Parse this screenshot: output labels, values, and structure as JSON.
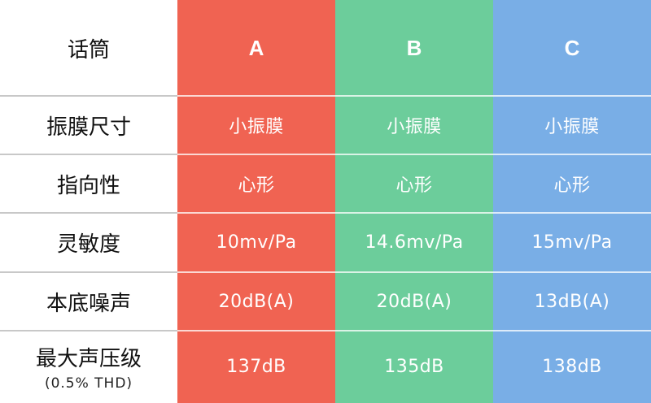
{
  "table": {
    "corner": "话筒",
    "columns": [
      {
        "name": "A",
        "color": "#f06352"
      },
      {
        "name": "B",
        "color": "#6ccd9b"
      },
      {
        "name": "C",
        "color": "#79aee6"
      }
    ],
    "rows": [
      {
        "label": "振膜尺寸",
        "values": [
          "小振膜",
          "小振膜",
          "小振膜"
        ]
      },
      {
        "label": "指向性",
        "values": [
          "心形",
          "心形",
          "心形"
        ]
      },
      {
        "label": "灵敏度",
        "values": [
          "10mv/Pa",
          "14.6mv/Pa",
          "15mv/Pa"
        ]
      },
      {
        "label": "本底噪声",
        "values": [
          "20dB(A)",
          "20dB(A)",
          "13dB(A)"
        ]
      },
      {
        "label": "最大声压级",
        "note": "(0.5% THD)",
        "values": [
          "137dB",
          "135dB",
          "138dB"
        ]
      }
    ]
  }
}
